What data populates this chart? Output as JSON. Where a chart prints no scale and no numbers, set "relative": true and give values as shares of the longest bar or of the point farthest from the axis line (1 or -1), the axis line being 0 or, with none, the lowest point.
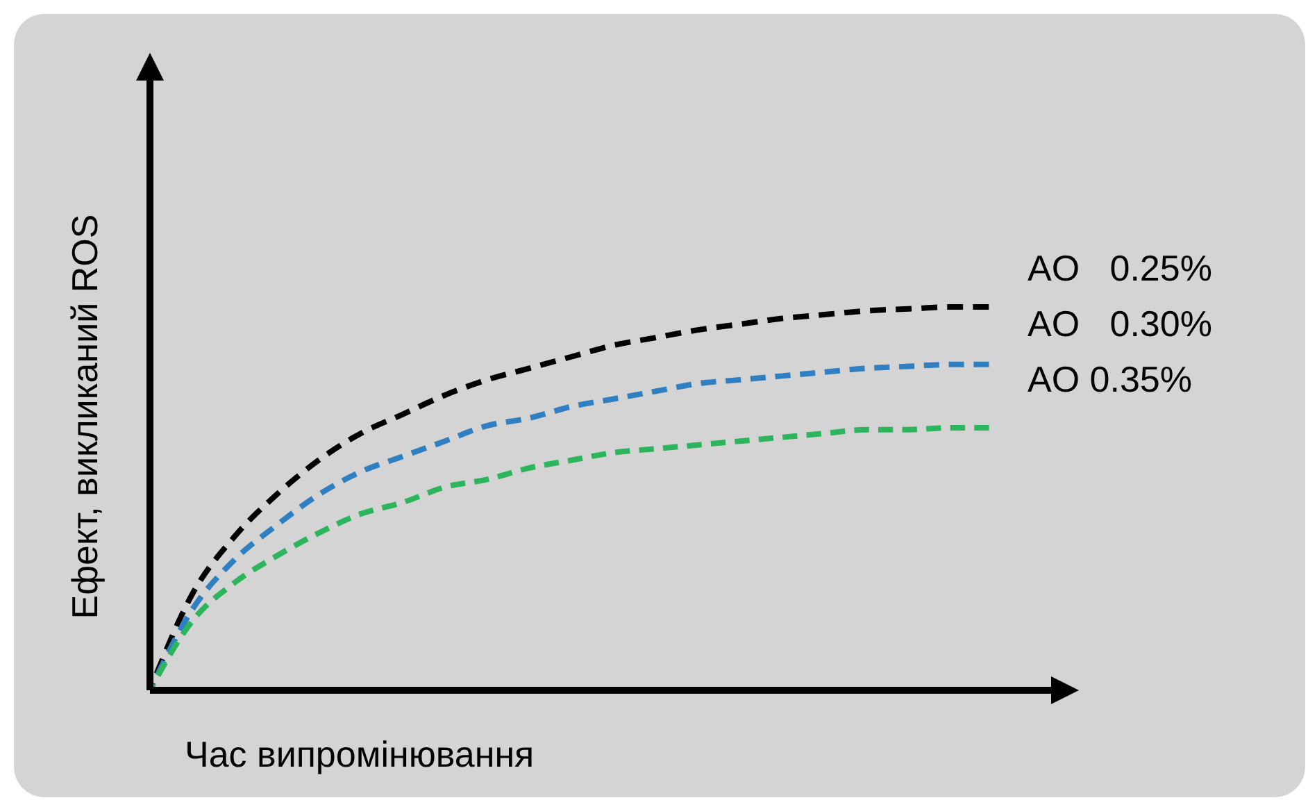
{
  "chart_data": {
    "type": "line",
    "relative": true,
    "xlabel": "Час випромінювання",
    "ylabel": "Ефект, викликаний ROS",
    "line_style": "dashed",
    "marker": "none",
    "categories": [
      null,
      null,
      null,
      null,
      null,
      null,
      null,
      null,
      null,
      null,
      null,
      null,
      null,
      null,
      null,
      null,
      null,
      null,
      null,
      null,
      null
    ],
    "series": [
      {
        "name": "AO   0.25%",
        "color": "#000000",
        "values": [
          0,
          0.25,
          0.4,
          0.51,
          0.6,
          0.67,
          0.72,
          0.77,
          0.81,
          0.84,
          0.87,
          0.9,
          0.92,
          0.94,
          0.955,
          0.97,
          0.98,
          0.99,
          0.995,
          1,
          1
        ]
      },
      {
        "name": "AO   0.30%",
        "color": "#2f7fc1",
        "values": [
          0,
          0.21,
          0.34,
          0.43,
          0.51,
          0.57,
          0.61,
          0.65,
          0.69,
          0.71,
          0.74,
          0.76,
          0.78,
          0.8,
          0.81,
          0.82,
          0.83,
          0.84,
          0.845,
          0.85,
          0.85
        ]
      },
      {
        "name": "AO 0.35%",
        "color": "#2db55d",
        "values": [
          0,
          0.18,
          0.28,
          0.35,
          0.41,
          0.46,
          0.49,
          0.53,
          0.55,
          0.58,
          0.6,
          0.62,
          0.63,
          0.64,
          0.65,
          0.66,
          0.67,
          0.68,
          0.68,
          0.685,
          0.685
        ]
      }
    ]
  }
}
